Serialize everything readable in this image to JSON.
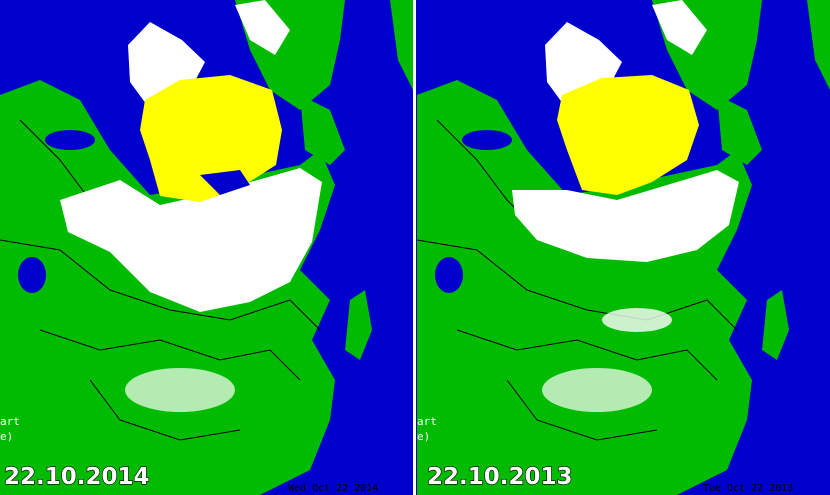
{
  "panels": [
    {
      "date_label": "22.10.2014",
      "stamp": "Wed Oct 22  2014",
      "legend_fragment": [
        "art",
        "e)"
      ]
    },
    {
      "date_label": "22.10.2013",
      "stamp": "Tue Oct 22  2013",
      "legend_fragment": [
        "art",
        "e)"
      ]
    }
  ]
}
